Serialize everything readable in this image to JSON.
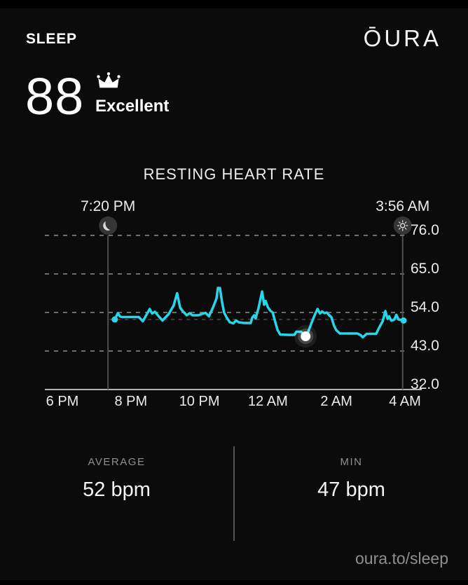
{
  "header": {
    "app_title": "SLEEP",
    "brand": "ŌURA"
  },
  "score": {
    "value": "88",
    "label": "Excellent",
    "icon": "crown-icon"
  },
  "chart_data": {
    "type": "line",
    "title": "RESTING HEART RATE",
    "unit": "bpm",
    "line_color": "#27d6ea",
    "grid": "dashed-horizontal",
    "ylim": [
      32,
      76
    ],
    "xlim_hours": [
      18,
      28
    ],
    "y_ticks": [
      {
        "value": 76,
        "label": "76.0"
      },
      {
        "value": 65,
        "label": "65.0"
      },
      {
        "value": 54,
        "label": "54.0"
      },
      {
        "value": 43,
        "label": "43.0"
      },
      {
        "value": 32,
        "label": "32.0"
      }
    ],
    "x_ticks": [
      {
        "hour": 18,
        "label": "6 PM"
      },
      {
        "hour": 20,
        "label": "8 PM"
      },
      {
        "hour": 22,
        "label": "10 PM"
      },
      {
        "hour": 24,
        "label": "12 AM"
      },
      {
        "hour": 26,
        "label": "2 AM"
      },
      {
        "hour": 28,
        "label": "4 AM"
      }
    ],
    "bedtime": {
      "label": "7:20 PM",
      "hour": 19.333,
      "icon": "moon-icon"
    },
    "wake": {
      "label": "3:56 AM",
      "hour": 27.933,
      "icon": "sun-icon"
    },
    "average_bpm": 52,
    "min_bpm": 47,
    "min_marker": {
      "hour": 25.1,
      "value": 47.2
    },
    "series": [
      [
        19.53,
        52
      ],
      [
        19.62,
        53.8
      ],
      [
        19.68,
        52.9
      ],
      [
        19.74,
        52.7
      ],
      [
        20.23,
        52.7
      ],
      [
        20.35,
        51.5
      ],
      [
        20.55,
        55
      ],
      [
        20.62,
        53.7
      ],
      [
        20.7,
        54.2
      ],
      [
        20.92,
        51.7
      ],
      [
        21.1,
        53.5
      ],
      [
        21.25,
        56
      ],
      [
        21.35,
        59.5
      ],
      [
        21.44,
        55.3
      ],
      [
        21.53,
        54.2
      ],
      [
        21.63,
        53.2
      ],
      [
        21.72,
        53.8
      ],
      [
        21.8,
        53.2
      ],
      [
        21.97,
        53.2
      ],
      [
        22.08,
        53.6
      ],
      [
        22.18,
        53.9
      ],
      [
        22.28,
        52.9
      ],
      [
        22.4,
        55.5
      ],
      [
        22.5,
        58
      ],
      [
        22.54,
        61
      ],
      [
        22.6,
        61
      ],
      [
        22.66,
        57
      ],
      [
        22.72,
        54
      ],
      [
        22.8,
        52.5
      ],
      [
        22.89,
        51.2
      ],
      [
        22.99,
        50.9
      ],
      [
        23.07,
        51.7
      ],
      [
        23.15,
        51.2
      ],
      [
        23.3,
        51
      ],
      [
        23.5,
        51
      ],
      [
        23.54,
        52.5
      ],
      [
        23.6,
        53.2
      ],
      [
        23.64,
        52.3
      ],
      [
        23.72,
        55
      ],
      [
        23.83,
        60
      ],
      [
        23.89,
        56.2
      ],
      [
        23.93,
        57.3
      ],
      [
        24.0,
        55.5
      ],
      [
        24.07,
        54.5
      ],
      [
        24.14,
        54
      ],
      [
        24.2,
        51.8
      ],
      [
        24.28,
        49
      ],
      [
        24.36,
        47.7
      ],
      [
        24.6,
        47.6
      ],
      [
        24.77,
        47.6
      ],
      [
        24.83,
        48.5
      ],
      [
        24.97,
        48.5
      ],
      [
        25.03,
        47.9
      ],
      [
        25.1,
        47.2
      ],
      [
        25.18,
        48.6
      ],
      [
        25.28,
        51.2
      ],
      [
        25.38,
        53.6
      ],
      [
        25.45,
        55
      ],
      [
        25.52,
        53.7
      ],
      [
        25.58,
        54.3
      ],
      [
        25.65,
        53.8
      ],
      [
        25.72,
        54
      ],
      [
        25.79,
        53.2
      ],
      [
        25.85,
        52.7
      ],
      [
        25.93,
        50.2
      ],
      [
        26.0,
        48.9
      ],
      [
        26.1,
        48
      ],
      [
        26.35,
        48
      ],
      [
        26.61,
        48
      ],
      [
        26.7,
        47.6
      ],
      [
        26.77,
        46.9
      ],
      [
        26.88,
        47.9
      ],
      [
        27.05,
        47.9
      ],
      [
        27.16,
        47.9
      ],
      [
        27.26,
        49.9
      ],
      [
        27.35,
        51.5
      ],
      [
        27.43,
        54.4
      ],
      [
        27.49,
        52.2
      ],
      [
        27.54,
        52.9
      ],
      [
        27.6,
        51.7
      ],
      [
        27.68,
        51.9
      ],
      [
        27.75,
        53.3
      ],
      [
        27.81,
        52
      ],
      [
        27.88,
        51.9
      ],
      [
        27.96,
        51.7
      ]
    ]
  },
  "stats": [
    {
      "label": "AVERAGE",
      "value": "52 bpm"
    },
    {
      "label": "MIN",
      "value": "47 bpm"
    }
  ],
  "footer": {
    "link": "oura.to/sleep"
  }
}
